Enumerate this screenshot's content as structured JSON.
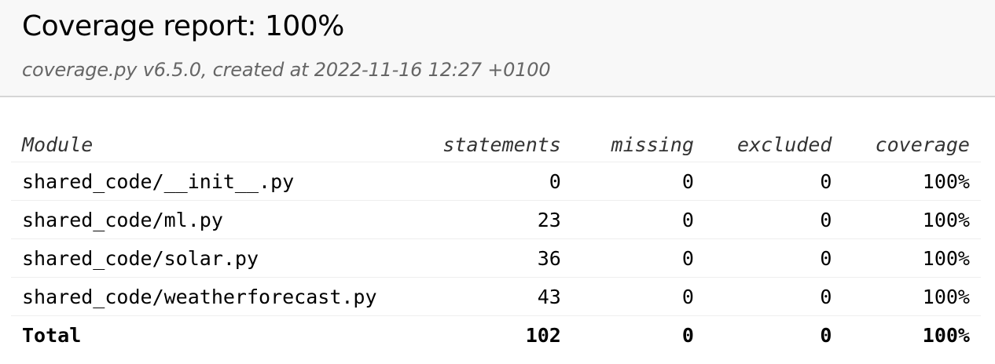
{
  "header": {
    "title": "Coverage report: 100%",
    "subtitle": "coverage.py v6.5.0, created at 2022-11-16 12:27 +0100"
  },
  "table": {
    "columns": [
      "Module",
      "statements",
      "missing",
      "excluded",
      "coverage"
    ],
    "rows": [
      {
        "module": "shared_code/__init__.py",
        "statements": "0",
        "missing": "0",
        "excluded": "0",
        "coverage": "100%"
      },
      {
        "module": "shared_code/ml.py",
        "statements": "23",
        "missing": "0",
        "excluded": "0",
        "coverage": "100%"
      },
      {
        "module": "shared_code/solar.py",
        "statements": "36",
        "missing": "0",
        "excluded": "0",
        "coverage": "100%"
      },
      {
        "module": "shared_code/weatherforecast.py",
        "statements": "43",
        "missing": "0",
        "excluded": "0",
        "coverage": "100%"
      }
    ],
    "total": {
      "label": "Total",
      "statements": "102",
      "missing": "0",
      "excluded": "0",
      "coverage": "100%"
    }
  }
}
